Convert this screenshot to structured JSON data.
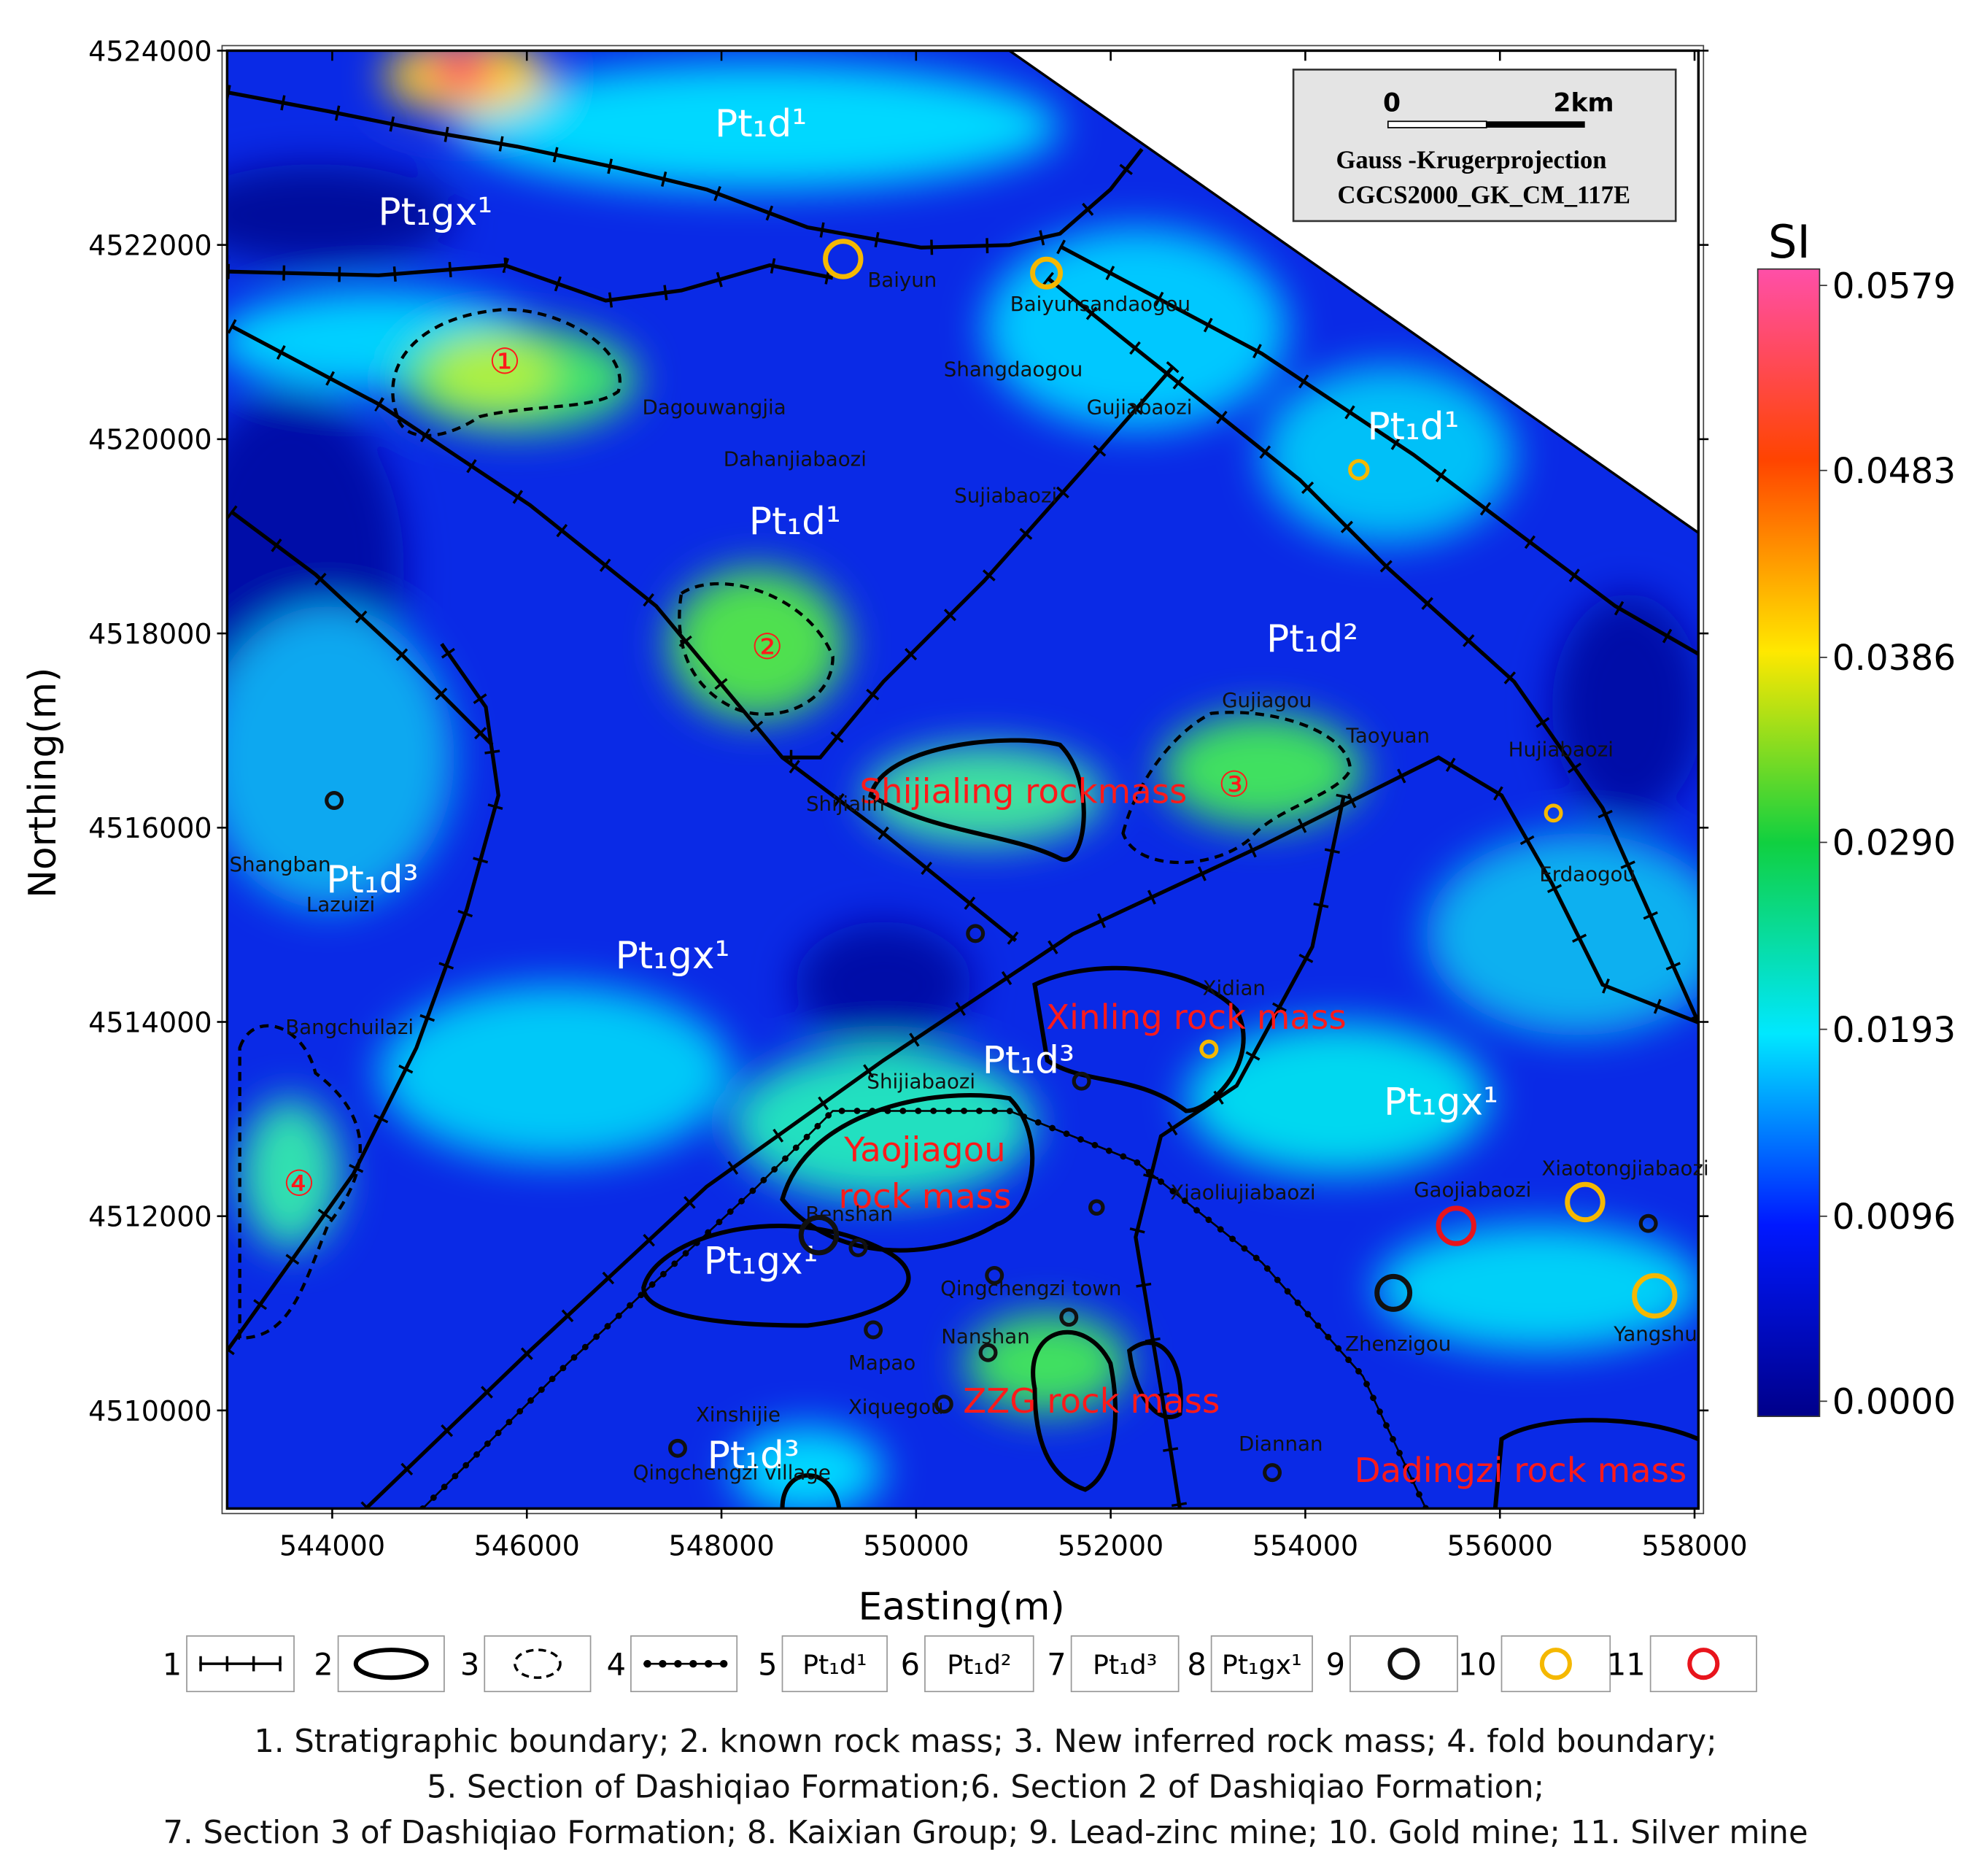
{
  "map": {
    "x_label": "Easting(m)",
    "y_label": "Northing(m)",
    "xlim": [
      542920,
      558040
    ],
    "ylim": [
      4508990,
      4524000
    ],
    "xticks": [
      544000,
      546000,
      548000,
      550000,
      552000,
      554000,
      556000,
      558000
    ],
    "yticks": [
      4510000,
      4512000,
      4514000,
      4516000,
      4518000,
      4520000,
      4522000,
      4524000
    ],
    "scale_bar": {
      "start": "0",
      "end": "2km",
      "projection": "Gauss -Krugerprojection",
      "crs": "CGCS2000_GK_CM_117E"
    },
    "colorbar": {
      "title": "SI",
      "lim": [
        0,
        0.0579
      ],
      "ticks": [
        {
          "value": 0,
          "label": "0.0000"
        },
        0.0096,
        0.0193,
        {
          "value": 0.029,
          "label": "0.0290"
        },
        0.0386,
        0.0483,
        0.0579
      ],
      "colors": [
        "#00008a",
        "#0018ff",
        "#00e8ff",
        "#10d040",
        "#ffe800",
        "#ff4400",
        "#ff4fa8"
      ]
    },
    "formations": [
      "Pt₁d¹",
      "Pt₁gx¹",
      "Pt₁d¹",
      "Pt₁d¹",
      "Pt₁d²",
      "Pt₁d³",
      "Pt₁gx¹",
      "Pt₁d³",
      "Pt₁gx¹",
      "Pt₁gx¹",
      "Pt₁d³"
    ],
    "rock_masses": [
      "Shijialing rockmass",
      "Xinling rock mass",
      "Yaojiagou",
      "rock mass",
      "ZZG rock mass",
      "Dadingzi rock mass"
    ],
    "anomalies": [
      "①",
      "②",
      "③",
      "④"
    ],
    "places": [
      "Baiyun",
      "Baiyunsandaogou",
      "Shangdaogou",
      "Dagouwangjia",
      "Gujiabaozi",
      "Dahanjiabaozi",
      "Sujiabaozi",
      "Gujiagou",
      "Taoyuan",
      "Hujiabaozi",
      "Shijialin",
      "Erdaogou",
      "Shangban",
      "Lazuizi",
      "Bangchuilazi",
      "Xidian",
      "Shijiabaozi",
      "Xiaoliujiabaozi",
      "Xiaotongjiabaozi",
      "Gaojiabaozi",
      "Benshan",
      "Qingchengzi town",
      "Zhenzigou",
      "Yangshu",
      "Nanshan",
      "Mapao",
      "Xiquegou",
      "Xinshijie",
      "Qingchengzi village",
      "Diannan"
    ],
    "mines": [
      {
        "color": "#f5b800",
        "easting": 549250,
        "northing": 4521855
      },
      {
        "color": "#f5b800",
        "easting": 551340,
        "northing": 4521710
      },
      {
        "color": "#f5b800",
        "easting": 554550,
        "northing": 4519685
      },
      {
        "color": "#f5b800",
        "easting": 553010,
        "northing": 4513720
      },
      {
        "color": "#f5b800",
        "easting": 556550,
        "northing": 4516150
      },
      {
        "color": "#f5b800",
        "easting": 556875,
        "northing": 4512145
      },
      {
        "color": "#f5b800",
        "easting": 557590,
        "northing": 4511180
      },
      {
        "color": "#e8141c",
        "easting": 555550,
        "northing": 4511900
      },
      {
        "color": "#111111",
        "easting": 544020,
        "northing": 4516280
      },
      {
        "color": "#111111",
        "easting": 550610,
        "northing": 4514910
      },
      {
        "color": "#111111",
        "easting": 551700,
        "northing": 4513390
      },
      {
        "color": "#111111",
        "easting": 549000,
        "northing": 4511805
      },
      {
        "color": "#111111",
        "easting": 551855,
        "northing": 4512090
      },
      {
        "color": "#111111",
        "easting": 549405,
        "northing": 4511675
      },
      {
        "color": "#111111",
        "easting": 550805,
        "northing": 4511390
      },
      {
        "color": "#111111",
        "easting": 549560,
        "northing": 4510830
      },
      {
        "color": "#111111",
        "easting": 550740,
        "northing": 4510595
      },
      {
        "color": "#111111",
        "easting": 551570,
        "northing": 4510960
      },
      {
        "color": "#111111",
        "easting": 550285,
        "northing": 4510065
      },
      {
        "color": "#111111",
        "easting": 547550,
        "northing": 4509610
      },
      {
        "color": "#111111",
        "easting": 553660,
        "northing": 4509360
      },
      {
        "color": "#111111",
        "easting": 554905,
        "northing": 4511210
      },
      {
        "color": "#111111",
        "easting": 557525,
        "northing": 4511925
      }
    ]
  },
  "legend": {
    "items": [
      {
        "number": "1"
      },
      {
        "number": "2"
      },
      {
        "number": "3"
      },
      {
        "number": "4"
      },
      {
        "number": "5",
        "label": "Pt₁d¹"
      },
      {
        "number": "6",
        "label": "Pt₁d²"
      },
      {
        "number": "7",
        "label": "Pt₁d³"
      },
      {
        "number": "8",
        "label": "Pt₁gx¹"
      },
      {
        "number": "9"
      },
      {
        "number": "10"
      },
      {
        "number": "11"
      }
    ]
  },
  "caption": [
    "1. Stratigraphic boundary; 2. known rock mass; 3. New inferred rock mass; 4. fold boundary;",
    "5. Section of Dashiqiao Formation;6. Section 2 of Dashiqiao Formation;",
    "7. Section 3 of Dashiqiao Formation; 8. Kaixian Group; 9. Lead-zinc mine; 10. Gold mine; 11. Silver mine"
  ]
}
